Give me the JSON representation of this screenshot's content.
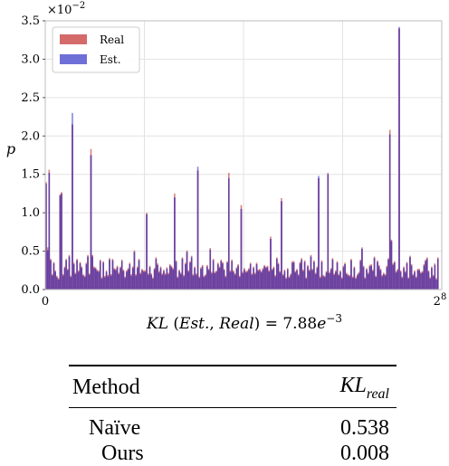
{
  "chart_data": {
    "type": "bar",
    "ylabel": "p",
    "y_multiplier": "×10^-2",
    "xlabel": "KL (Est., Real) = 7.88e^-3",
    "xlim": [
      0,
      256
    ],
    "ylim": [
      0,
      3.5
    ],
    "x_ticks": [
      "0",
      "2^8"
    ],
    "y_ticks": [
      "0.0",
      "0.5",
      "1.0",
      "1.5",
      "2.0",
      "2.5",
      "3.0",
      "3.5"
    ],
    "grid": true,
    "legend_position": "top-left",
    "series": [
      {
        "name": "Real",
        "color": "#d46a6a",
        "values": [
          1.4,
          0.55,
          1.56,
          0.4,
          0.2,
          0.36,
          0.25,
          0.18,
          0.15,
          1.24,
          1.27,
          0.2,
          0.3,
          0.4,
          0.27,
          0.45,
          0.18,
          2.15,
          0.35,
          0.22,
          0.4,
          0.25,
          0.36,
          0.3,
          0.2,
          0.18,
          0.35,
          0.45,
          0.21,
          1.83,
          0.45,
          0.3,
          0.29,
          0.26,
          0.25,
          0.39,
          0.16,
          0.37,
          0.18,
          0.25,
          0.19,
          0.41,
          0.2,
          0.4,
          0.28,
          0.27,
          0.31,
          0.22,
          0.3,
          0.39,
          0.26,
          0.17,
          0.25,
          0.28,
          0.35,
          0.2,
          0.3,
          0.51,
          0.2,
          0.3,
          0.4,
          0.22,
          0.27,
          0.25,
          0.25,
          1.0,
          0.21,
          0.31,
          0.21,
          0.16,
          0.28,
          0.42,
          0.34,
          0.24,
          0.3,
          0.21,
          0.26,
          0.21,
          0.29,
          0.22,
          0.33,
          0.31,
          0.28,
          1.25,
          0.38,
          0.17,
          0.26,
          0.22,
          0.42,
          0.19,
          0.35,
          0.51,
          0.25,
          0.37,
          0.44,
          0.2,
          0.3,
          0.21,
          1.55,
          0.17,
          0.29,
          0.32,
          0.18,
          0.2,
          0.32,
          0.27,
          0.54,
          0.23,
          0.4,
          0.23,
          0.25,
          0.35,
          0.3,
          0.39,
          0.36,
          0.27,
          0.18,
          0.37,
          1.52,
          0.25,
          0.39,
          0.25,
          0.21,
          0.29,
          0.33,
          0.18,
          1.1,
          0.23,
          0.28,
          0.24,
          0.25,
          0.28,
          0.35,
          0.21,
          0.3,
          0.22,
          0.35,
          0.26,
          0.27,
          0.24,
          0.28,
          0.32,
          0.3,
          0.31,
          0.25,
          0.69,
          0.27,
          0.3,
          0.19,
          0.42,
          0.35,
          0.24,
          1.19,
          0.2,
          0.26,
          0.16,
          0.28,
          0.17,
          0.21,
          0.37,
          0.37,
          0.24,
          0.27,
          0.2,
          0.36,
          0.41,
          0.26,
          0.38,
          0.16,
          0.32,
          0.26,
          0.45,
          0.27,
          0.38,
          0.22,
          0.3,
          1.45,
          0.17,
          0.38,
          0.19,
          0.18,
          0.24,
          1.52,
          0.23,
          0.28,
          0.41,
          0.21,
          0.25,
          0.37,
          0.2,
          0.25,
          0.16,
          0.31,
          0.35,
          0.22,
          0.2,
          0.19,
          0.4,
          0.17,
          0.3,
          0.16,
          0.2,
          0.23,
          0.39,
          0.55,
          0.31,
          0.16,
          0.28,
          0.22,
          0.32,
          0.33,
          0.26,
          0.43,
          0.18,
          0.38,
          0.32,
          0.27,
          0.19,
          0.22,
          0.2,
          0.31,
          0.41,
          2.08,
          0.65,
          0.34,
          0.37,
          0.24,
          0.27,
          3.4,
          0.25,
          0.17,
          0.3,
          0.24,
          0.36,
          0.16,
          0.44,
          0.33,
          0.2,
          0.25,
          0.17,
          0.27,
          0.27,
          0.23,
          0.24,
          0.33,
          0.39,
          0.42,
          0.25,
          0.16,
          0.3,
          0.19,
          0.34,
          0.15,
          0.42
        ]
      },
      {
        "name": "Est.",
        "color": "#6f6fd8",
        "values": [
          1.38,
          0.51,
          1.52,
          0.38,
          0.18,
          0.34,
          0.23,
          0.16,
          0.13,
          1.22,
          1.25,
          0.18,
          0.28,
          0.38,
          0.25,
          0.43,
          0.16,
          2.3,
          0.33,
          0.2,
          0.38,
          0.23,
          0.34,
          0.28,
          0.18,
          0.16,
          0.33,
          0.43,
          0.19,
          1.75,
          0.43,
          0.28,
          0.27,
          0.24,
          0.23,
          0.37,
          0.14,
          0.35,
          0.16,
          0.23,
          0.17,
          0.39,
          0.18,
          0.38,
          0.26,
          0.25,
          0.29,
          0.2,
          0.28,
          0.37,
          0.24,
          0.15,
          0.23,
          0.26,
          0.33,
          0.18,
          0.28,
          0.49,
          0.18,
          0.28,
          0.38,
          0.2,
          0.25,
          0.23,
          0.23,
          0.98,
          0.19,
          0.29,
          0.19,
          0.14,
          0.26,
          0.4,
          0.32,
          0.22,
          0.28,
          0.19,
          0.24,
          0.19,
          0.27,
          0.2,
          0.31,
          0.29,
          0.26,
          1.2,
          0.36,
          0.15,
          0.24,
          0.2,
          0.4,
          0.17,
          0.33,
          0.49,
          0.23,
          0.35,
          0.42,
          0.18,
          0.28,
          0.19,
          1.6,
          0.15,
          0.27,
          0.3,
          0.16,
          0.18,
          0.3,
          0.25,
          0.52,
          0.21,
          0.38,
          0.21,
          0.23,
          0.33,
          0.28,
          0.37,
          0.34,
          0.25,
          0.16,
          0.35,
          1.45,
          0.23,
          0.37,
          0.23,
          0.19,
          0.27,
          0.31,
          0.16,
          1.05,
          0.21,
          0.26,
          0.22,
          0.23,
          0.26,
          0.33,
          0.19,
          0.28,
          0.2,
          0.33,
          0.24,
          0.25,
          0.22,
          0.26,
          0.3,
          0.28,
          0.29,
          0.23,
          0.66,
          0.25,
          0.28,
          0.17,
          0.4,
          0.33,
          0.22,
          1.15,
          0.18,
          0.24,
          0.14,
          0.26,
          0.15,
          0.19,
          0.35,
          0.35,
          0.22,
          0.25,
          0.18,
          0.34,
          0.39,
          0.24,
          0.36,
          0.14,
          0.3,
          0.24,
          0.43,
          0.25,
          0.36,
          0.2,
          0.28,
          1.48,
          0.15,
          0.36,
          0.17,
          0.16,
          0.22,
          1.5,
          0.21,
          0.26,
          0.39,
          0.19,
          0.23,
          0.35,
          0.18,
          0.23,
          0.14,
          0.29,
          0.33,
          0.2,
          0.18,
          0.17,
          0.38,
          0.15,
          0.28,
          0.14,
          0.18,
          0.21,
          0.37,
          0.53,
          0.29,
          0.14,
          0.26,
          0.2,
          0.3,
          0.31,
          0.24,
          0.41,
          0.16,
          0.36,
          0.3,
          0.25,
          0.17,
          0.2,
          0.18,
          0.29,
          0.39,
          2.02,
          0.63,
          0.32,
          0.35,
          0.22,
          0.25,
          3.42,
          0.23,
          0.15,
          0.28,
          0.22,
          0.34,
          0.14,
          0.42,
          0.31,
          0.18,
          0.23,
          0.15,
          0.25,
          0.25,
          0.21,
          0.22,
          0.31,
          0.37,
          0.4,
          0.23,
          0.14,
          0.28,
          0.17,
          0.32,
          0.13,
          0.4
        ]
      }
    ]
  },
  "table": {
    "header": {
      "method": "Method",
      "kl_main": "KL",
      "kl_sub": "real"
    },
    "rows": [
      {
        "method": "Naïve",
        "value": "0.538"
      },
      {
        "method": "Ours",
        "value": "0.008"
      }
    ]
  }
}
